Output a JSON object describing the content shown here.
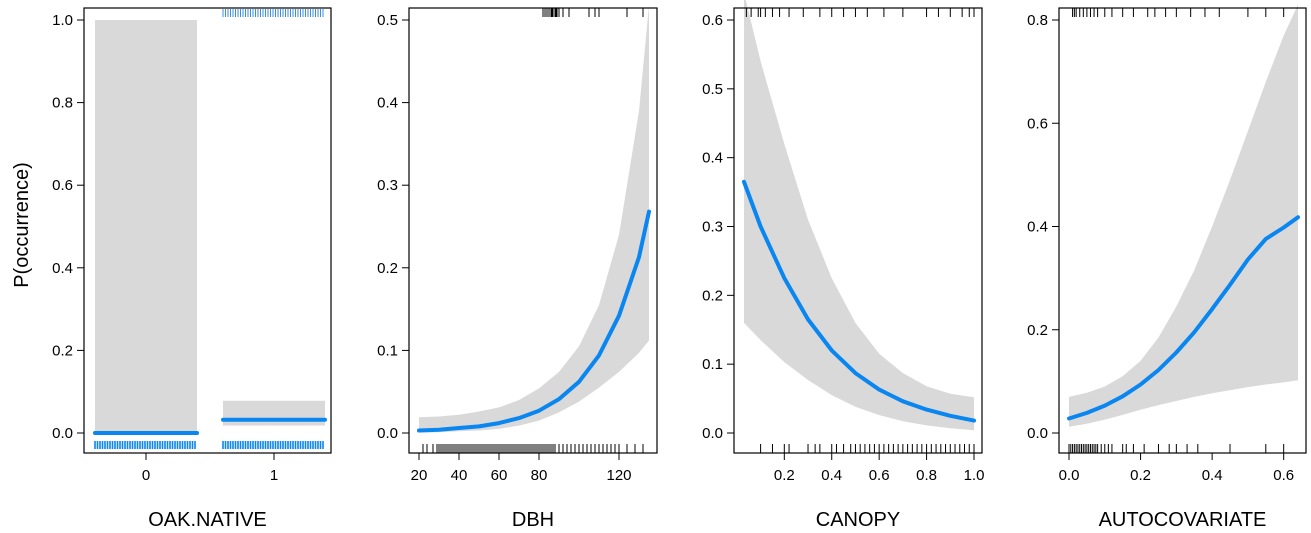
{
  "ylabel": "P(occurrence)",
  "colors": {
    "line": "#0a86f0",
    "band": "#d9d9d9",
    "rug": "#000000",
    "rug_blue": "#3a8fe0",
    "axis": "#000000"
  },
  "chart_data": [
    {
      "type": "bar",
      "xlabel": "OAK.NATIVE",
      "categories": [
        "0",
        "1"
      ],
      "fit": [
        0.0,
        0.032
      ],
      "lower": [
        0.0,
        0.018
      ],
      "upper": [
        1.0,
        0.078
      ],
      "ylim": [
        0,
        1.0
      ],
      "yticks": [
        "0.0",
        "0.2",
        "0.4",
        "0.6",
        "0.8",
        "1.0"
      ],
      "ytick_values": [
        0,
        0.2,
        0.4,
        0.6,
        0.8,
        1.0
      ],
      "rug_top_categories": [
        "1"
      ],
      "rug_bottom_categories": [
        "0",
        "1"
      ]
    },
    {
      "type": "line",
      "xlabel": "DBH",
      "xlim": [
        20,
        135
      ],
      "ylim": [
        0,
        0.5
      ],
      "xticks": [
        "20",
        "40",
        "60",
        "80",
        "120"
      ],
      "xtick_values": [
        20,
        40,
        60,
        80,
        120
      ],
      "yticks": [
        "0.0",
        "0.1",
        "0.2",
        "0.3",
        "0.4",
        "0.5"
      ],
      "ytick_values": [
        0,
        0.1,
        0.2,
        0.3,
        0.4,
        0.5
      ],
      "x": [
        20,
        30,
        40,
        50,
        60,
        70,
        80,
        90,
        100,
        110,
        120,
        130,
        135
      ],
      "y": [
        0.003,
        0.004,
        0.006,
        0.008,
        0.012,
        0.018,
        0.027,
        0.041,
        0.062,
        0.094,
        0.142,
        0.213,
        0.268
      ],
      "lower": [
        0.0005,
        0.001,
        0.002,
        0.003,
        0.005,
        0.009,
        0.015,
        0.025,
        0.038,
        0.055,
        0.074,
        0.097,
        0.112
      ],
      "upper": [
        0.019,
        0.02,
        0.022,
        0.026,
        0.031,
        0.04,
        0.054,
        0.074,
        0.105,
        0.155,
        0.24,
        0.39,
        0.518
      ],
      "rug_top": [
        82,
        83,
        84,
        85,
        86,
        86.5,
        87,
        88,
        88.5,
        89,
        90,
        92,
        95,
        105,
        108,
        110,
        124,
        132
      ],
      "rug_bottom": [
        22,
        24,
        27,
        29,
        30,
        31,
        32,
        33,
        34,
        35,
        36,
        37,
        38,
        39,
        40,
        41,
        42,
        43,
        44,
        45,
        46,
        47,
        48,
        49,
        50,
        51,
        52,
        53,
        54,
        55,
        56,
        57,
        58,
        59,
        60,
        61,
        62,
        63,
        64,
        65,
        66,
        67,
        68,
        69,
        70,
        71,
        72,
        73,
        74,
        75,
        76,
        77,
        78,
        79,
        80,
        81,
        82,
        83,
        84,
        85,
        86,
        87,
        88,
        90,
        92,
        94,
        96,
        98,
        100,
        102,
        104,
        106,
        108,
        110,
        112,
        114,
        116,
        118,
        120,
        124,
        128,
        132
      ]
    },
    {
      "type": "line",
      "xlabel": "CANOPY",
      "xlim": [
        0.03,
        1.0
      ],
      "ylim": [
        0,
        0.6
      ],
      "xticks": [
        "0.2",
        "0.4",
        "0.6",
        "0.8",
        "1.0"
      ],
      "xtick_values": [
        0.2,
        0.4,
        0.6,
        0.8,
        1.0
      ],
      "yticks": [
        "0.0",
        "0.1",
        "0.2",
        "0.3",
        "0.4",
        "0.5",
        "0.6"
      ],
      "ytick_values": [
        0,
        0.1,
        0.2,
        0.3,
        0.4,
        0.5,
        0.6
      ],
      "x": [
        0.03,
        0.1,
        0.2,
        0.3,
        0.4,
        0.5,
        0.6,
        0.7,
        0.8,
        0.9,
        1.0
      ],
      "y": [
        0.365,
        0.3,
        0.225,
        0.165,
        0.12,
        0.087,
        0.063,
        0.046,
        0.034,
        0.025,
        0.018
      ],
      "lower": [
        0.16,
        0.135,
        0.103,
        0.077,
        0.055,
        0.038,
        0.026,
        0.017,
        0.011,
        0.007,
        0.004
      ],
      "upper": [
        0.64,
        0.54,
        0.42,
        0.31,
        0.225,
        0.16,
        0.115,
        0.087,
        0.068,
        0.057,
        0.052
      ],
      "rug_top": [
        0.04,
        0.06,
        0.09,
        0.1,
        0.12,
        0.15,
        0.18,
        0.22,
        0.28,
        0.35,
        0.4,
        0.45,
        0.5,
        0.55,
        0.62,
        0.7,
        0.8,
        0.85,
        0.9,
        0.95,
        0.98,
        1.0
      ],
      "rug_bottom": [
        0.1,
        0.15,
        0.2,
        0.22,
        0.3,
        0.33,
        0.35,
        0.4,
        0.42,
        0.45,
        0.48,
        0.5,
        0.52,
        0.54,
        0.56,
        0.58,
        0.6,
        0.62,
        0.64,
        0.66,
        0.68,
        0.7,
        0.72,
        0.74,
        0.76,
        0.78,
        0.8,
        0.82,
        0.84,
        0.86,
        0.88,
        0.9,
        0.92,
        0.94,
        0.96,
        0.98,
        1.0
      ]
    },
    {
      "type": "line",
      "xlabel": "AUTOCOVARIATE",
      "xlim": [
        0.0,
        0.64
      ],
      "ylim": [
        0,
        0.8
      ],
      "xticks": [
        "0.0",
        "0.2",
        "0.4",
        "0.6"
      ],
      "xtick_values": [
        0,
        0.2,
        0.4,
        0.6
      ],
      "yticks": [
        "0.0",
        "0.2",
        "0.4",
        "0.6",
        "0.8"
      ],
      "ytick_values": [
        0,
        0.2,
        0.4,
        0.6,
        0.8
      ],
      "x": [
        0.0,
        0.05,
        0.1,
        0.15,
        0.2,
        0.25,
        0.3,
        0.35,
        0.4,
        0.45,
        0.5,
        0.55,
        0.6,
        0.64
      ],
      "y": [
        0.028,
        0.039,
        0.053,
        0.071,
        0.094,
        0.122,
        0.156,
        0.195,
        0.24,
        0.287,
        0.336,
        0.376,
        0.398,
        0.418
      ],
      "lower": [
        0.012,
        0.018,
        0.026,
        0.035,
        0.045,
        0.054,
        0.062,
        0.07,
        0.077,
        0.083,
        0.089,
        0.094,
        0.098,
        0.102
      ],
      "upper": [
        0.07,
        0.078,
        0.09,
        0.11,
        0.14,
        0.185,
        0.245,
        0.315,
        0.4,
        0.49,
        0.585,
        0.68,
        0.77,
        0.83
      ],
      "rug_top": [
        0.01,
        0.015,
        0.02,
        0.03,
        0.04,
        0.05,
        0.06,
        0.07,
        0.08,
        0.1,
        0.12,
        0.15,
        0.18,
        0.22,
        0.24,
        0.27,
        0.3,
        0.34,
        0.38,
        0.42,
        0.5,
        0.55,
        0.6
      ],
      "rug_bottom": [
        0.0,
        0.005,
        0.01,
        0.015,
        0.02,
        0.025,
        0.03,
        0.035,
        0.04,
        0.045,
        0.05,
        0.055,
        0.06,
        0.065,
        0.07,
        0.075,
        0.08,
        0.09,
        0.1,
        0.11,
        0.12,
        0.15,
        0.16,
        0.18,
        0.21,
        0.25,
        0.28,
        0.3,
        0.33,
        0.36,
        0.45,
        0.55,
        0.6
      ]
    }
  ]
}
